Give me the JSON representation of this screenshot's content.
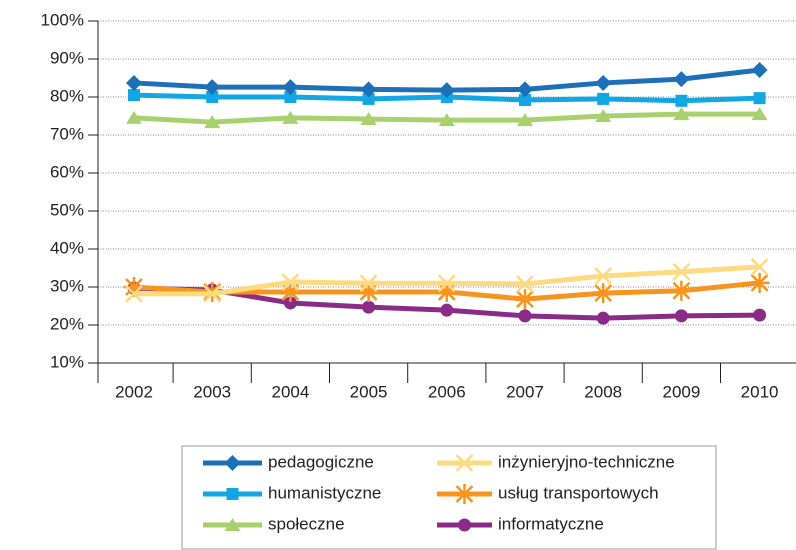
{
  "chart_data": {
    "type": "line",
    "categories": [
      "2002",
      "2003",
      "2004",
      "2005",
      "2006",
      "2007",
      "2008",
      "2009",
      "2010"
    ],
    "ylim": [
      10,
      100
    ],
    "yticks": [
      {
        "value": 10,
        "label": "10%"
      },
      {
        "value": 20,
        "label": "20%"
      },
      {
        "value": 30,
        "label": "30%"
      },
      {
        "value": 40,
        "label": "40%"
      },
      {
        "value": 50,
        "label": "50%"
      },
      {
        "value": 60,
        "label": "60%"
      },
      {
        "value": 70,
        "label": "70%"
      },
      {
        "value": 80,
        "label": "80%"
      },
      {
        "value": 90,
        "label": "90%"
      },
      {
        "value": 100,
        "label": "100%"
      }
    ],
    "grid": true,
    "series": [
      {
        "name": "pedagogiczne",
        "color": "#1d70b7",
        "marker": "diamond",
        "values": [
          83.7,
          82.6,
          82.6,
          82,
          81.8,
          82,
          83.7,
          84.7,
          87.1
        ]
      },
      {
        "name": "humanistyczne",
        "color": "#12a6e4",
        "marker": "square",
        "values": [
          80.5,
          80,
          80,
          79.5,
          80,
          79.2,
          79.5,
          79,
          79.7
        ]
      },
      {
        "name": "społeczne",
        "color": "#a8d06f",
        "marker": "triangle",
        "values": [
          74.5,
          73.4,
          74.5,
          74.2,
          73.9,
          73.9,
          75,
          75.5,
          75.5
        ]
      },
      {
        "name": "inżynieryjno-techniczne",
        "color": "#fdd97f",
        "marker": "x",
        "values": [
          28.2,
          28.2,
          31.3,
          31,
          31,
          30.8,
          32.9,
          34,
          35.3
        ]
      },
      {
        "name": "usług transportowych",
        "color": "#f7941d",
        "marker": "star",
        "values": [
          30,
          28.7,
          28.7,
          28.7,
          28.7,
          26.8,
          28.4,
          29,
          31.1
        ]
      },
      {
        "name": "informatyczne",
        "color": "#8a2b88",
        "marker": "circle",
        "values": [
          29.7,
          29.2,
          25.8,
          24.7,
          23.9,
          22.4,
          21.8,
          22.4,
          22.6
        ]
      }
    ]
  }
}
